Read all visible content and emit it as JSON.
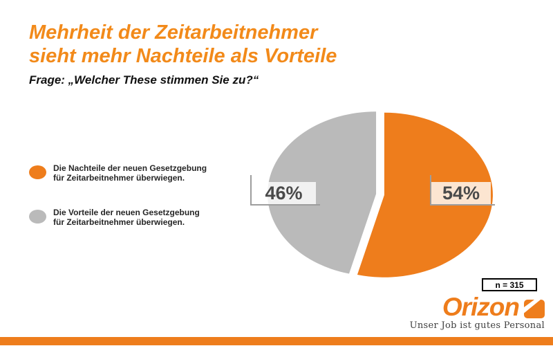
{
  "title": {
    "line1": "Mehrheit der Zeitarbeitnehmer",
    "line2": "sieht mehr Nachteile als Vorteile"
  },
  "subtitle": "Frage: „Welcher These stimmen Sie zu?“",
  "legend": {
    "items": [
      {
        "color": "#ee7d1c",
        "lines": [
          "Die Nachteile der neuen Gesetzgebung",
          "für Zeitarbeitnehmer überwiegen."
        ]
      },
      {
        "color": "#bababa",
        "lines": [
          "Die Vorteile der neuen Gesetzgebung",
          "für Zeitarbeitnehmer überwiegen."
        ]
      }
    ]
  },
  "chart_data": {
    "type": "pie",
    "title": "Mehrheit der Zeitarbeitnehmer sieht mehr Nachteile als Vorteile",
    "question": "Frage: „Welcher These stimmen Sie zu?“",
    "categories": [
      "Die Nachteile der neuen Gesetzgebung für Zeitarbeitnehmer überwiegen.",
      "Die Vorteile der neuen Gesetzgebung für Zeitarbeitnehmer überwiegen."
    ],
    "values": [
      54,
      46
    ],
    "unit": "%",
    "display_labels": [
      "54%",
      "46%"
    ],
    "colors": [
      "#ee7d1c",
      "#bababa"
    ],
    "start_angle_deg": 0,
    "direction": "clockwise",
    "exploded": true,
    "legend_position": "left",
    "sample_size_label": "n = 315"
  },
  "footer": {
    "logo_text": "Orizon",
    "tagline": "Unser Job ist gutes Personal",
    "brand_color": "#ee7d1c"
  }
}
